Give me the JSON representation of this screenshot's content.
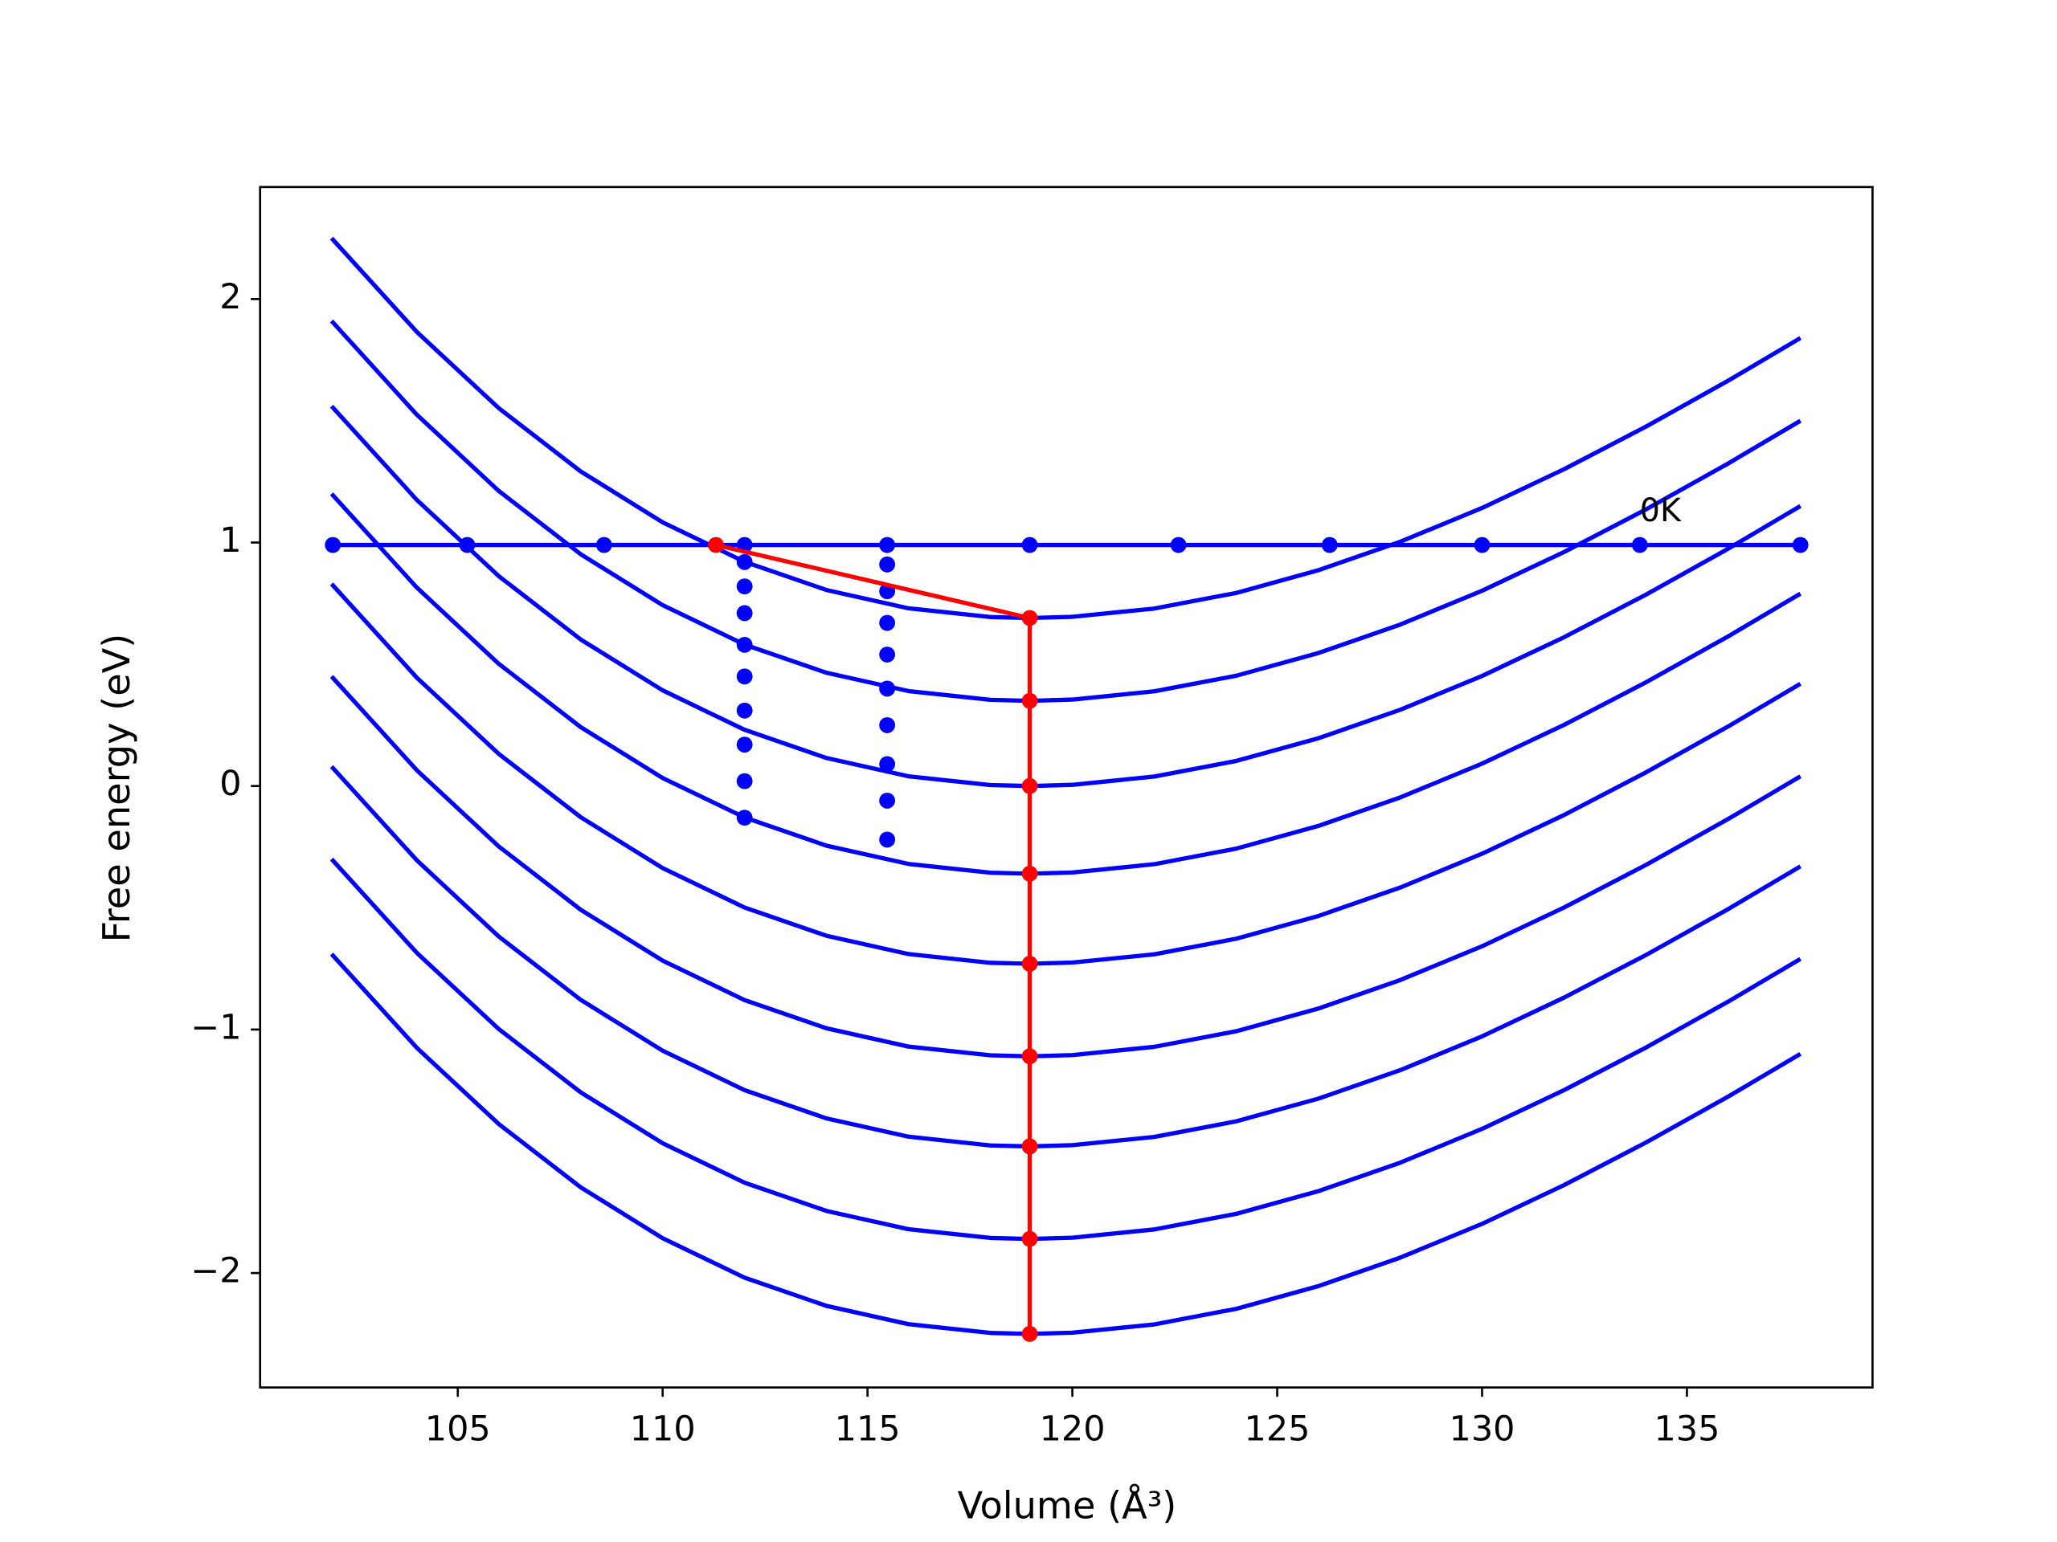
{
  "chart_data": {
    "type": "line",
    "xlabel": "Volume (Å³)",
    "ylabel": "Free energy (eV)",
    "xlim": [
      100.175,
      139.53
    ],
    "ylim": [
      -2.47,
      2.46
    ],
    "xticks": [
      105,
      110,
      115,
      120,
      125,
      130,
      135
    ],
    "yticks": [
      {
        "value": -2,
        "label": "−2"
      },
      {
        "value": -1,
        "label": "−1"
      },
      0,
      1,
      2
    ],
    "x": [
      101.92,
      104,
      106,
      108,
      110,
      112,
      114,
      116,
      118,
      118.96,
      120,
      122,
      124,
      126,
      128,
      130,
      132,
      134,
      136,
      137.77
    ],
    "series": [
      {
        "color": "#0000ff",
        "marker": false,
        "line": true,
        "values": [
          2.25,
          1.865,
          1.552,
          1.292,
          1.083,
          0.921,
          0.805,
          0.73,
          0.694,
          0.69,
          0.695,
          0.729,
          0.793,
          0.886,
          1.003,
          1.142,
          1.301,
          1.476,
          1.664,
          1.84
        ]
      },
      {
        "color": "#0000ff",
        "marker": false,
        "line": true,
        "values": [
          1.91,
          1.525,
          1.212,
          0.952,
          0.743,
          0.581,
          0.465,
          0.39,
          0.354,
          0.35,
          0.355,
          0.389,
          0.453,
          0.546,
          0.663,
          0.802,
          0.961,
          1.136,
          1.324,
          1.5
        ]
      },
      {
        "color": "#0000ff",
        "marker": false,
        "line": true,
        "values": [
          1.56,
          1.175,
          0.862,
          0.602,
          0.393,
          0.231,
          0.115,
          0.04,
          0.004,
          0,
          0.005,
          0.039,
          0.103,
          0.196,
          0.313,
          0.452,
          0.611,
          0.786,
          0.974,
          1.15
        ]
      },
      {
        "color": "#0000ff",
        "marker": false,
        "line": true,
        "values": [
          1.2,
          0.815,
          0.502,
          0.242,
          0.033,
          -0.129,
          -0.245,
          -0.32,
          -0.356,
          -0.36,
          -0.355,
          -0.321,
          -0.257,
          -0.164,
          -0.047,
          0.092,
          0.251,
          0.426,
          0.614,
          0.79
        ]
      },
      {
        "color": "#0000ff",
        "marker": false,
        "line": true,
        "values": [
          0.83,
          0.445,
          0.132,
          -0.128,
          -0.337,
          -0.499,
          -0.615,
          -0.69,
          -0.726,
          -0.73,
          -0.725,
          -0.691,
          -0.627,
          -0.534,
          -0.417,
          -0.278,
          -0.119,
          0.056,
          0.244,
          0.42
        ]
      },
      {
        "color": "#0000ff",
        "marker": false,
        "line": true,
        "values": [
          0.45,
          0.065,
          -0.248,
          -0.508,
          -0.717,
          -0.879,
          -0.995,
          -1.07,
          -1.106,
          -1.11,
          -1.105,
          -1.071,
          -1.007,
          -0.914,
          -0.797,
          -0.658,
          -0.499,
          -0.324,
          -0.136,
          0.04
        ]
      },
      {
        "color": "#0000ff",
        "marker": false,
        "line": true,
        "values": [
          0.08,
          -0.305,
          -0.618,
          -0.878,
          -1.087,
          -1.249,
          -1.365,
          -1.44,
          -1.476,
          -1.48,
          -1.475,
          -1.441,
          -1.377,
          -1.284,
          -1.167,
          -1.028,
          -0.869,
          -0.694,
          -0.506,
          -0.33
        ]
      },
      {
        "color": "#0000ff",
        "marker": false,
        "line": true,
        "values": [
          -0.3,
          -0.685,
          -0.998,
          -1.258,
          -1.467,
          -1.629,
          -1.745,
          -1.82,
          -1.856,
          -1.86,
          -1.855,
          -1.821,
          -1.757,
          -1.664,
          -1.547,
          -1.408,
          -1.249,
          -1.074,
          -0.886,
          -0.71
        ]
      },
      {
        "color": "#0000ff",
        "marker": false,
        "line": true,
        "values": [
          -0.69,
          -1.075,
          -1.388,
          -1.648,
          -1.857,
          -2.019,
          -2.135,
          -2.21,
          -2.246,
          -2.25,
          -2.245,
          -2.211,
          -2.147,
          -2.054,
          -1.937,
          -1.798,
          -1.639,
          -1.464,
          -1.276,
          -1.1
        ]
      },
      {
        "color": "#0000ff",
        "marker": true,
        "line": true,
        "x": [
          101.95,
          105.23,
          108.57,
          112.0,
          115.48,
          118.96,
          122.59,
          126.28,
          130.0,
          133.85,
          137.77
        ],
        "values": [
          0.99,
          0.99,
          0.99,
          0.99,
          0.99,
          0.99,
          0.99,
          0.99,
          0.99,
          0.99,
          0.99
        ]
      },
      {
        "color": "#0000ff",
        "marker": true,
        "line": false,
        "x": [
          112.0,
          112.0,
          112.0,
          112.0,
          112.0,
          112.0,
          112.0,
          112.0,
          112.0
        ],
        "values": [
          0.92,
          0.82,
          0.71,
          0.58,
          0.45,
          0.31,
          0.17,
          0.02,
          -0.13
        ]
      },
      {
        "color": "#0000ff",
        "marker": true,
        "line": false,
        "x": [
          115.48,
          115.48,
          115.48,
          115.48,
          115.48,
          115.48,
          115.48,
          115.48,
          115.48
        ],
        "values": [
          0.91,
          0.8,
          0.67,
          0.54,
          0.4,
          0.25,
          0.09,
          -0.06,
          -0.22
        ]
      },
      {
        "color": "#ff0000",
        "marker": true,
        "line": true,
        "x": [
          111.3,
          118.96,
          118.96,
          118.96,
          118.96,
          118.96,
          118.96,
          118.96,
          118.96,
          118.96
        ],
        "values": [
          0.99,
          0.69,
          0.35,
          0,
          -0.36,
          -0.73,
          -1.11,
          -1.48,
          -1.86,
          -2.25
        ]
      }
    ],
    "annotations": [
      {
        "text": "0K",
        "x": 133.85,
        "y": 0.99
      }
    ]
  }
}
